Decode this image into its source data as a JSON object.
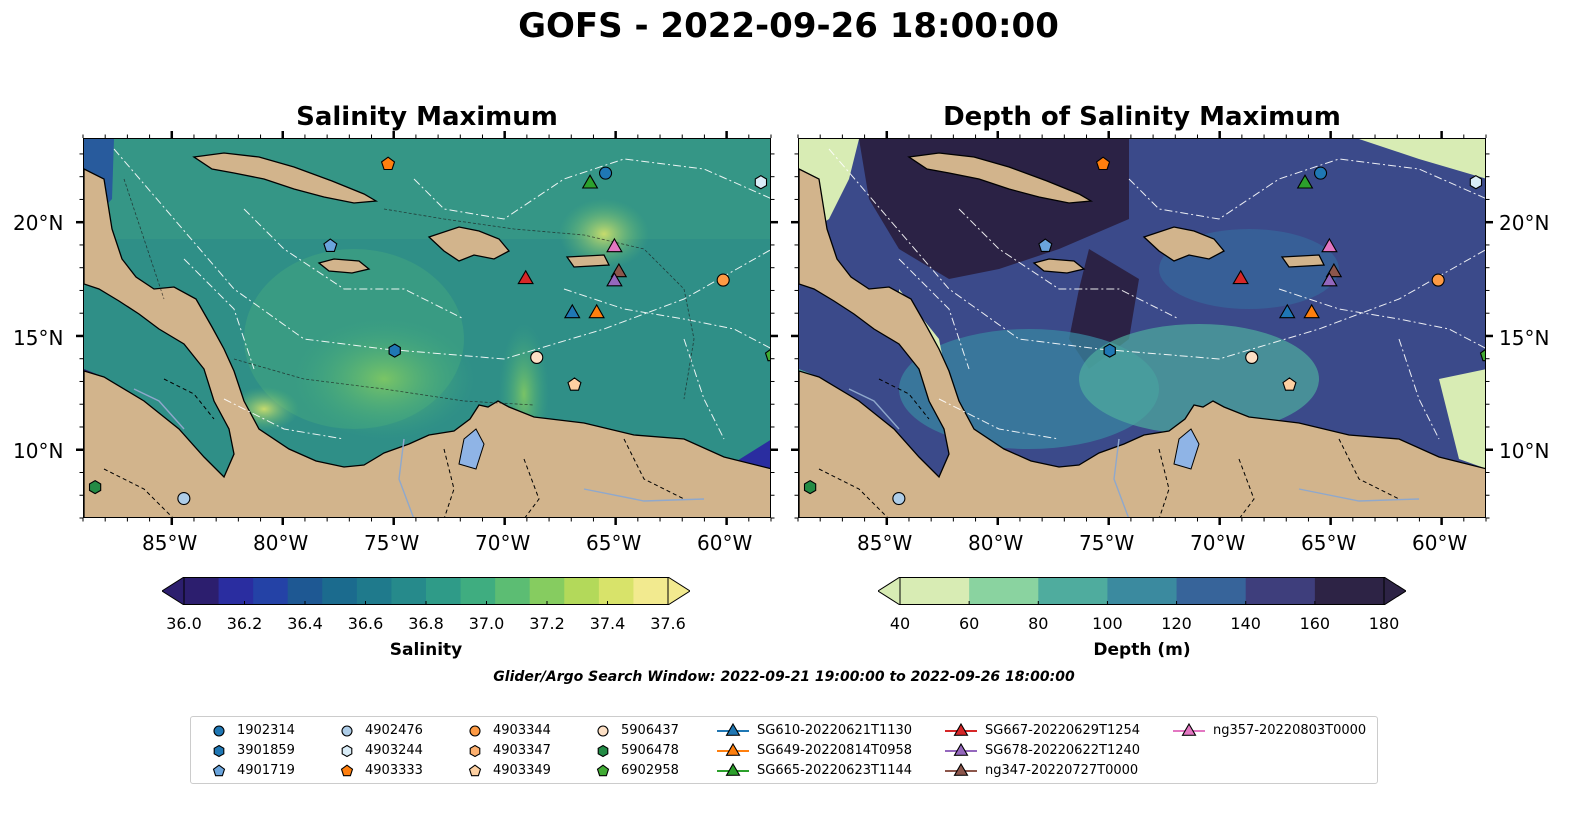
{
  "title": "GOFS - 2022-09-26 18:00:00",
  "panels": {
    "left_title": "Salinity Maximum",
    "right_title": "Depth of Salinity Maximum"
  },
  "axes": {
    "lat_labels": [
      "20°N",
      "15°N",
      "10°N"
    ],
    "lon_labels": [
      "85°W",
      "80°W",
      "75°W",
      "70°W",
      "65°W",
      "60°W"
    ],
    "extent": {
      "lon_min": -89,
      "lon_max": -58,
      "lat_min": 7,
      "lat_max": 23.7
    }
  },
  "colorbars": {
    "salinity": {
      "label": "Salinity",
      "ticks": [
        "36.0",
        "36.2",
        "36.4",
        "36.6",
        "36.8",
        "37.0",
        "37.2",
        "37.4",
        "37.6"
      ],
      "colors": [
        "#2c1e6e",
        "#2a2da0",
        "#2442a6",
        "#1e5893",
        "#1b6b8e",
        "#1f7a8c",
        "#268a8b",
        "#2f9b88",
        "#3fad80",
        "#5cbd73",
        "#86cc60",
        "#b3d95a",
        "#d8e36a",
        "#f2ea8f"
      ]
    },
    "depth": {
      "label": "Depth (m)",
      "ticks": [
        "40",
        "60",
        "80",
        "100",
        "120",
        "140",
        "160",
        "180"
      ],
      "colors": [
        "#d8ecb4",
        "#8ad3a0",
        "#4fac9e",
        "#3b8a9f",
        "#37649a",
        "#3e3e7c",
        "#2d2345"
      ]
    }
  },
  "search_window": "Glider/Argo Search Window: 2022-09-21 19:00:00 to 2022-09-26 18:00:00",
  "legend": [
    {
      "label": "1902314",
      "marker": "circle",
      "color": "#1f77b4",
      "line": false
    },
    {
      "label": "3901859",
      "marker": "hexagon",
      "color": "#1f77b4",
      "line": false
    },
    {
      "label": "4901719",
      "marker": "pentagon",
      "color": "#6aa4dc",
      "line": false
    },
    {
      "label": "4902476",
      "marker": "circle",
      "color": "#aecde8",
      "line": false
    },
    {
      "label": "4903244",
      "marker": "hexagon",
      "color": "#d9ecf7",
      "line": false
    },
    {
      "label": "4903333",
      "marker": "pentagon",
      "color": "#ff7f0e",
      "line": false
    },
    {
      "label": "4903344",
      "marker": "circle",
      "color": "#fd9a44",
      "line": false
    },
    {
      "label": "4903347",
      "marker": "hexagon",
      "color": "#fdb06f",
      "line": false
    },
    {
      "label": "4903349",
      "marker": "pentagon",
      "color": "#fdd0a2",
      "line": false
    },
    {
      "label": "5906437",
      "marker": "circle",
      "color": "#fde0c5",
      "line": false
    },
    {
      "label": "5906478",
      "marker": "hexagon",
      "color": "#238b45",
      "line": false
    },
    {
      "label": "6902958",
      "marker": "pentagon",
      "color": "#41ab34",
      "line": false
    },
    {
      "label": "SG610-20220621T1130",
      "marker": "triangle",
      "color": "#1f77b4",
      "line": true
    },
    {
      "label": "SG649-20220814T0958",
      "marker": "triangle",
      "color": "#ff7f0e",
      "line": true
    },
    {
      "label": "SG665-20220623T1144",
      "marker": "triangle",
      "color": "#2ca02c",
      "line": true
    },
    {
      "label": "SG667-20220629T1254",
      "marker": "triangle",
      "color": "#d62728",
      "line": true
    },
    {
      "label": "SG678-20220622T1240",
      "marker": "triangle",
      "color": "#9467bd",
      "line": true
    },
    {
      "label": "ng347-20220727T0000",
      "marker": "triangle",
      "color": "#8c564b",
      "line": true
    },
    {
      "label": "ng357-20220803T0000",
      "marker": "triangle",
      "color": "#e377c2",
      "line": true
    }
  ],
  "map_markers": [
    {
      "id": "4903333",
      "marker": "pentagon",
      "color": "#ff7f0e",
      "lon": -75.3,
      "lat": 22.6
    },
    {
      "id": "1902314",
      "marker": "circle",
      "color": "#1f77b4",
      "lon": -65.5,
      "lat": 22.2
    },
    {
      "id": "4903244",
      "marker": "hexagon",
      "color": "#d9ecf7",
      "lon": -58.5,
      "lat": 21.8
    },
    {
      "id": "4901719",
      "marker": "pentagon",
      "color": "#6aa4dc",
      "lon": -77.9,
      "lat": 19.0
    },
    {
      "id": "4903344",
      "marker": "circle",
      "color": "#fd9a44",
      "lon": -60.2,
      "lat": 17.5
    },
    {
      "id": "3901859",
      "marker": "hexagon",
      "color": "#1f77b4",
      "lon": -75.0,
      "lat": 14.4
    },
    {
      "id": "5906437",
      "marker": "circle",
      "color": "#fde0c5",
      "lon": -68.6,
      "lat": 14.1
    },
    {
      "id": "4903349",
      "marker": "pentagon",
      "color": "#fdd0a2",
      "lon": -66.9,
      "lat": 12.9
    },
    {
      "id": "6902958",
      "marker": "pentagon",
      "color": "#41ab34",
      "lon": -58.0,
      "lat": 14.2
    },
    {
      "id": "5906478",
      "marker": "hexagon",
      "color": "#238b45",
      "lon": -88.5,
      "lat": 8.4
    },
    {
      "id": "4902476",
      "marker": "circle",
      "color": "#aecde8",
      "lon": -84.5,
      "lat": 7.9
    },
    {
      "id": "SG665-20220623T1144",
      "marker": "triangle",
      "color": "#2ca02c",
      "lon": -66.2,
      "lat": 21.8
    },
    {
      "id": "ng357-20220803T0000",
      "marker": "triangle",
      "color": "#e377c2",
      "lon": -65.1,
      "lat": 19.0
    },
    {
      "id": "ng347-20220727T0000",
      "marker": "triangle",
      "color": "#8c564b",
      "lon": -64.9,
      "lat": 17.9
    },
    {
      "id": "SG678-20220622T1240",
      "marker": "triangle",
      "color": "#9467bd",
      "lon": -65.1,
      "lat": 17.5
    },
    {
      "id": "SG667-20220629T1254",
      "marker": "triangle",
      "color": "#d62728",
      "lon": -69.1,
      "lat": 17.6
    },
    {
      "id": "SG610-20220621T1130",
      "marker": "triangle",
      "color": "#1f77b4",
      "lon": -67.0,
      "lat": 16.1
    },
    {
      "id": "SG649-20220814T0958",
      "marker": "triangle",
      "color": "#ff7f0e",
      "lon": -65.9,
      "lat": 16.1
    }
  ],
  "colors": {
    "land": "#d2b48c",
    "lake": "#8fb4e6",
    "left_sea": "#2f8f87",
    "right_sea": "#3b5a90"
  }
}
